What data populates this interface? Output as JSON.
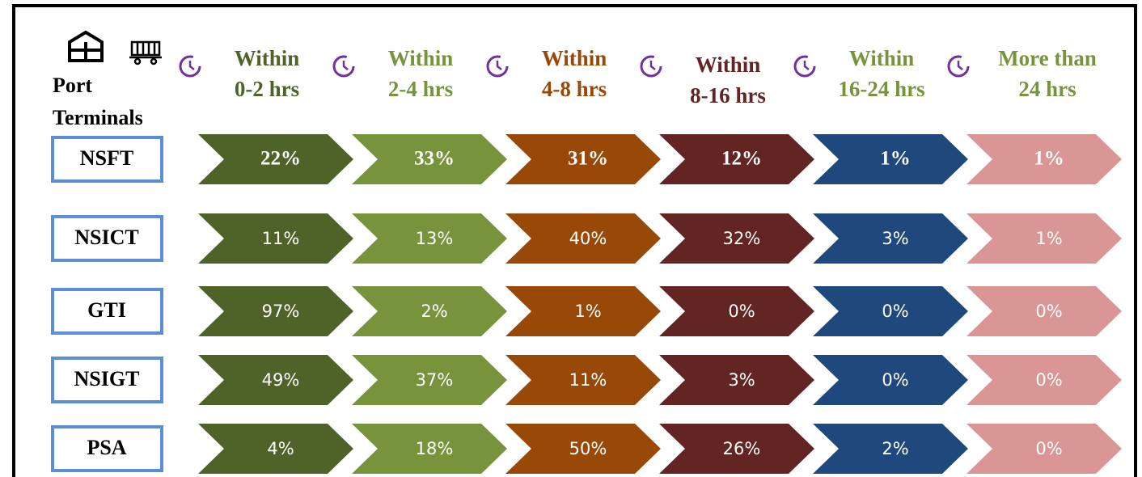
{
  "header": {
    "title_lines": [
      "Port",
      "Terminals"
    ]
  },
  "columns": [
    {
      "lines": [
        "Within",
        "0-2 hrs"
      ],
      "color": "#4f6228"
    },
    {
      "lines": [
        "Within",
        "2-4 hrs"
      ],
      "color": "#77933c"
    },
    {
      "lines": [
        "Within",
        "4-8 hrs"
      ],
      "color": "#984807"
    },
    {
      "lines": [
        "Within",
        "8-16 hrs"
      ],
      "color": "#632523"
    },
    {
      "lines": [
        "Within",
        "16-24 hrs"
      ],
      "color": "#1f497d"
    },
    {
      "lines": [
        "More than",
        "24 hrs"
      ],
      "color": "#d99694"
    }
  ],
  "header_colors": [
    "#4f6228",
    "#77933c",
    "#984807",
    "#632523",
    "#77933c",
    "#77933c"
  ],
  "rows": [
    {
      "terminal": "NSFT",
      "values": [
        "22%",
        "33%",
        "31%",
        "12%",
        "1%",
        "1%"
      ]
    },
    {
      "terminal": "NSICT",
      "values": [
        "11%",
        "13%",
        "40%",
        "32%",
        "3%",
        "1%"
      ]
    },
    {
      "terminal": "GTI",
      "values": [
        "97%",
        "2%",
        "1%",
        "0%",
        "0%",
        "0%"
      ]
    },
    {
      "terminal": "NSIGT",
      "values": [
        "49%",
        "37%",
        "11%",
        "3%",
        "0%",
        "0%"
      ]
    },
    {
      "terminal": "PSA",
      "values": [
        "4%",
        "18%",
        "50%",
        "26%",
        "2%",
        "0%"
      ]
    }
  ]
}
